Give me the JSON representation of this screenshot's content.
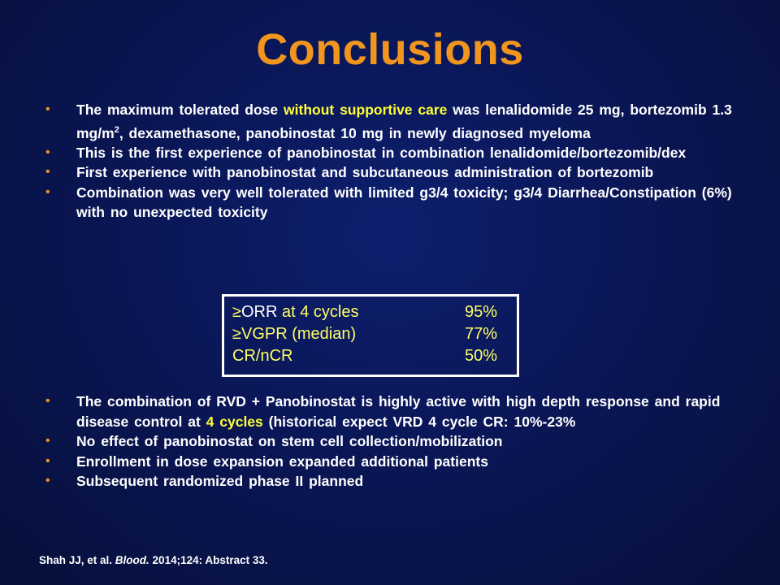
{
  "title": "Conclusions",
  "colors": {
    "title": "#f0961e",
    "bullet": "#f0961e",
    "highlight": "#ffff33",
    "background": "#0a1656"
  },
  "bullets_top": [
    {
      "pre": "The maximum tolerated dose ",
      "highlight": "without supportive care",
      "post_a": " was  lenalidomide 25 mg, bortezomib 1.3 mg/m",
      "sup": "2",
      "post_b": ", dexamethasone, panobinostat 10 mg in newly diagnosed myeloma"
    },
    {
      "text": "This is the first experience of panobinostat in combination lenalidomide/bortezomib/dex"
    },
    {
      "text": "First experience with panobinostat and subcutaneous administration of bortezomib"
    },
    {
      "text": "Combination was very well tolerated with limited g3/4 toxicity; g3/4 Diarrhea/Constipation (6%) with no unexpected toxicity"
    }
  ],
  "results": [
    {
      "label_prefix": "≥",
      "label_highlight": "ORR",
      "label_rest": " at 4 cycles",
      "value": "95%"
    },
    {
      "label": "≥VGPR (median)",
      "value": "77%"
    },
    {
      "label": "CR/nCR",
      "value": "50%"
    }
  ],
  "bullets_bottom": [
    {
      "pre": "The combination of RVD + Panobinostat is highly active  with high depth response and rapid disease control at ",
      "highlight": "4 cycles",
      "post": " (historical  expect VRD 4 cycle  CR: 10%-23%"
    },
    {
      "text": "No effect of panobinostat on stem cell collection/mobilization"
    },
    {
      "text": "Enrollment in dose expansion expanded additional patients"
    },
    {
      "text": "Subsequent randomized phase II planned"
    }
  ],
  "citation": {
    "authors": "Shah JJ, et al. ",
    "journal": "Blood.",
    "details": " 2014;124: Abstract 33."
  }
}
